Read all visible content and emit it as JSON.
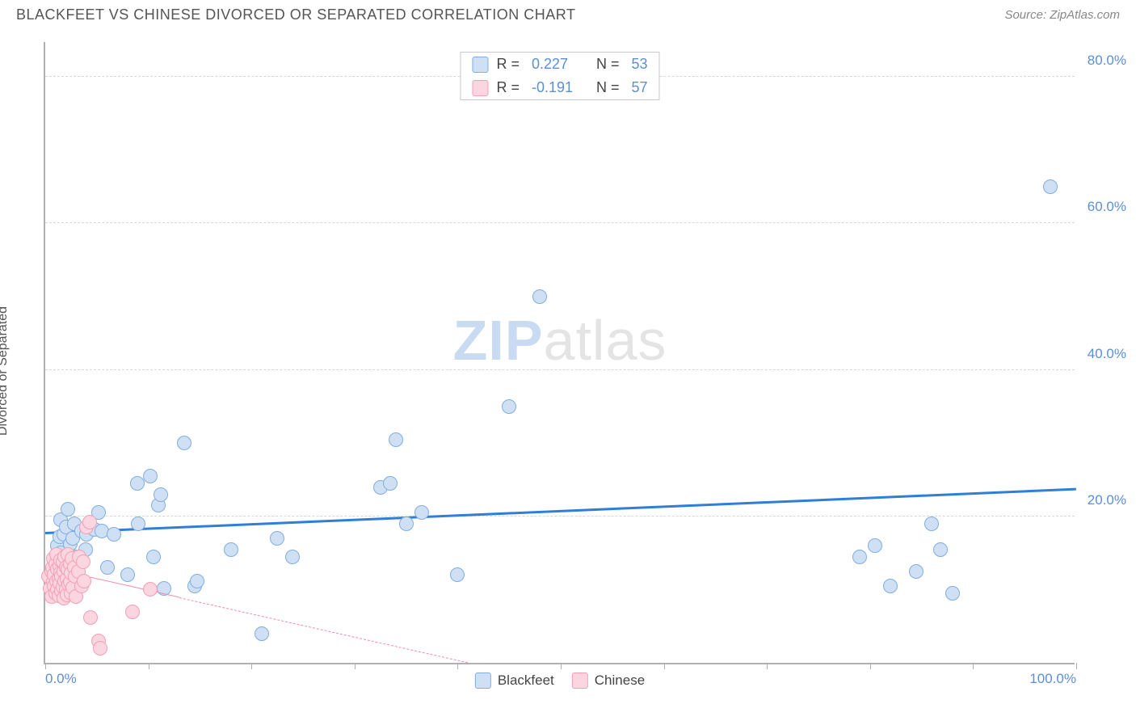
{
  "header": {
    "title": "BLACKFEET VS CHINESE DIVORCED OR SEPARATED CORRELATION CHART",
    "source_label": "Source: ZipAtlas.com"
  },
  "chart": {
    "type": "scatter",
    "ylabel": "Divorced or Separated",
    "xlim": [
      0,
      100
    ],
    "ylim": [
      0,
      85
    ],
    "x_ticks_minor": [
      0,
      10,
      20,
      30,
      40,
      50,
      60,
      70,
      80,
      90,
      100
    ],
    "x_tick_labels": [
      {
        "x": 0,
        "label": "0.0%"
      },
      {
        "x": 100,
        "label": "100.0%"
      }
    ],
    "y_gridlines": [
      20,
      40,
      60,
      80
    ],
    "y_tick_labels": [
      {
        "y": 20,
        "label": "20.0%"
      },
      {
        "y": 40,
        "label": "40.0%"
      },
      {
        "y": 60,
        "label": "60.0%"
      },
      {
        "y": 80,
        "label": "80.0%"
      }
    ],
    "background_color": "#ffffff",
    "grid_color": "#d8d8d8",
    "axis_color": "#b0b0b0",
    "tick_label_color": "#5b8fd6",
    "watermark": {
      "zip": "ZIP",
      "atlas": "atlas"
    },
    "series": [
      {
        "name": "Blackfeet",
        "fill": "#cfe0f5",
        "stroke": "#7faee0",
        "marker_radius": 9,
        "stroke_width": 1.5,
        "R": "0.227",
        "N": "53",
        "trend": {
          "x1": 0,
          "y1": 17.5,
          "x2": 100,
          "y2": 23.5,
          "color": "#2f7ed8",
          "width": 3,
          "dashed": false
        },
        "points": [
          [
            0.8,
            12.2
          ],
          [
            1.0,
            14.5
          ],
          [
            1.2,
            16.0
          ],
          [
            1.3,
            13.2
          ],
          [
            1.4,
            17.2
          ],
          [
            1.5,
            15.0
          ],
          [
            1.5,
            19.5
          ],
          [
            1.6,
            10.8
          ],
          [
            1.8,
            17.5
          ],
          [
            2.0,
            18.5
          ],
          [
            2.1,
            14.0
          ],
          [
            2.2,
            21.0
          ],
          [
            2.4,
            16.2
          ],
          [
            2.7,
            17.0
          ],
          [
            2.8,
            19.0
          ],
          [
            3.0,
            14.5
          ],
          [
            3.5,
            18.0
          ],
          [
            3.9,
            15.5
          ],
          [
            4.0,
            17.5
          ],
          [
            4.8,
            18.2
          ],
          [
            5.2,
            20.5
          ],
          [
            5.5,
            18.0
          ],
          [
            6.0,
            13.0
          ],
          [
            6.7,
            17.5
          ],
          [
            8.0,
            12.0
          ],
          [
            8.9,
            24.5
          ],
          [
            9.0,
            19.0
          ],
          [
            10.2,
            25.5
          ],
          [
            10.5,
            14.5
          ],
          [
            11.0,
            21.5
          ],
          [
            11.2,
            23.0
          ],
          [
            11.5,
            10.2
          ],
          [
            13.5,
            30.0
          ],
          [
            14.5,
            10.5
          ],
          [
            14.7,
            11.2
          ],
          [
            18.0,
            15.5
          ],
          [
            21.0,
            4.0
          ],
          [
            22.5,
            17.0
          ],
          [
            24.0,
            14.5
          ],
          [
            32.5,
            24.0
          ],
          [
            33.5,
            24.5
          ],
          [
            34.0,
            30.5
          ],
          [
            35.0,
            19.0
          ],
          [
            36.5,
            20.5
          ],
          [
            40.0,
            12.0
          ],
          [
            45.0,
            35.0
          ],
          [
            48.0,
            50.0
          ],
          [
            79.0,
            14.5
          ],
          [
            80.5,
            16.0
          ],
          [
            82.0,
            10.5
          ],
          [
            84.5,
            12.5
          ],
          [
            86.0,
            19.0
          ],
          [
            86.8,
            15.5
          ],
          [
            88.0,
            9.5
          ],
          [
            97.5,
            65.0
          ]
        ]
      },
      {
        "name": "Chinese",
        "fill": "#fbd5df",
        "stroke": "#f3a0b7",
        "marker_radius": 9,
        "stroke_width": 1.5,
        "R": "-0.191",
        "N": "57",
        "trend": {
          "x1": 0,
          "y1": 13.0,
          "x2": 41,
          "y2": 0,
          "color": "#f08ca6",
          "width": 1.5,
          "dashed_after_x": 13
        },
        "points": [
          [
            0.3,
            11.8
          ],
          [
            0.5,
            10.2
          ],
          [
            0.6,
            12.5
          ],
          [
            0.6,
            9.0
          ],
          [
            0.7,
            13.0
          ],
          [
            0.8,
            11.0
          ],
          [
            0.8,
            14.2
          ],
          [
            0.9,
            10.5
          ],
          [
            0.9,
            12.0
          ],
          [
            1.0,
            13.5
          ],
          [
            1.0,
            9.5
          ],
          [
            1.1,
            11.2
          ],
          [
            1.1,
            14.8
          ],
          [
            1.2,
            10.0
          ],
          [
            1.2,
            12.8
          ],
          [
            1.3,
            11.5
          ],
          [
            1.3,
            9.2
          ],
          [
            1.4,
            13.2
          ],
          [
            1.4,
            10.8
          ],
          [
            1.5,
            12.2
          ],
          [
            1.5,
            14.0
          ],
          [
            1.6,
            9.8
          ],
          [
            1.6,
            11.8
          ],
          [
            1.7,
            13.8
          ],
          [
            1.7,
            10.4
          ],
          [
            1.8,
            12.5
          ],
          [
            1.8,
            8.8
          ],
          [
            1.9,
            11.2
          ],
          [
            1.9,
            14.5
          ],
          [
            2.0,
            10.0
          ],
          [
            2.0,
            13.0
          ],
          [
            2.1,
            11.5
          ],
          [
            2.1,
            9.3
          ],
          [
            2.2,
            12.8
          ],
          [
            2.2,
            14.8
          ],
          [
            2.3,
            10.7
          ],
          [
            2.4,
            13.5
          ],
          [
            2.4,
            11.0
          ],
          [
            2.5,
            9.5
          ],
          [
            2.5,
            12.2
          ],
          [
            2.6,
            14.2
          ],
          [
            2.7,
            10.3
          ],
          [
            2.8,
            13.0
          ],
          [
            2.9,
            11.8
          ],
          [
            3.0,
            9.0
          ],
          [
            3.2,
            12.5
          ],
          [
            3.3,
            14.5
          ],
          [
            3.5,
            10.5
          ],
          [
            3.7,
            13.8
          ],
          [
            3.8,
            11.2
          ],
          [
            4.0,
            18.5
          ],
          [
            4.3,
            19.2
          ],
          [
            4.4,
            6.2
          ],
          [
            5.2,
            3.0
          ],
          [
            5.3,
            2.0
          ],
          [
            8.5,
            7.0
          ],
          [
            10.2,
            10.0
          ]
        ]
      }
    ],
    "legend_bottom": [
      {
        "label": "Blackfeet",
        "fill": "#cfe0f5",
        "stroke": "#7faee0"
      },
      {
        "label": "Chinese",
        "fill": "#fbd5df",
        "stroke": "#f3a0b7"
      }
    ]
  }
}
